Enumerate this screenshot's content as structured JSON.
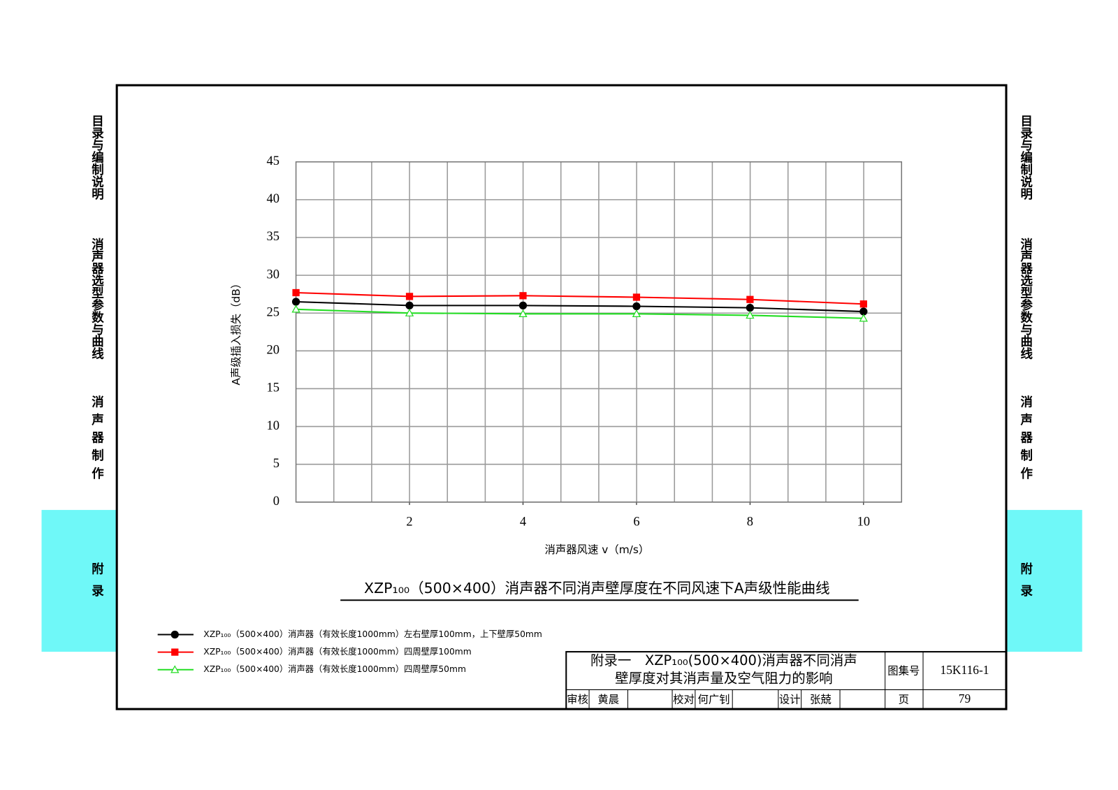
{
  "chart_data": {
    "type": "line",
    "title": "XZP₁₀₀（500×400）消声器不同消声壁厚度在不同风速下A声级性能曲线",
    "x_label": "消声器风速 v（m/s）",
    "y_label": "A声级插入损失（dB）",
    "x": [
      0,
      2,
      4,
      6,
      8,
      10
    ],
    "xlim": [
      0,
      10.67
    ],
    "xticks": [
      2,
      4,
      6,
      8,
      10
    ],
    "ylim": [
      0,
      45
    ],
    "yticks": [
      0,
      5,
      10,
      15,
      20,
      25,
      30,
      35,
      40,
      45
    ],
    "grid": true,
    "series": [
      {
        "name": "XZP₁₀₀（500×400）消声器（有效长度1000mm）左右壁厚100mm，上下壁厚50mm",
        "color": "#000000",
        "marker": "circle",
        "values": [
          26.5,
          26.0,
          26.0,
          25.9,
          25.7,
          25.2
        ]
      },
      {
        "name": "XZP₁₀₀（500×400）消声器（有效长度1000mm）四周壁厚100mm",
        "color": "#ff0000",
        "marker": "square",
        "values": [
          27.7,
          27.2,
          27.3,
          27.1,
          26.8,
          26.2
        ]
      },
      {
        "name": "XZP₁₀₀（500×400）消声器（有效长度1000mm）四周壁厚50mm",
        "color": "#22dd22",
        "marker": "triangle",
        "values": [
          25.5,
          25.0,
          24.9,
          24.9,
          24.7,
          24.3
        ]
      }
    ]
  },
  "side_tabs": [
    "目录与编制说明",
    "消声器选型参数与曲线",
    "消声器制作",
    "附录"
  ],
  "title_block": {
    "title_line1": "附录一　XZP₁₀₀(500×400)消声器不同消声",
    "title_line2": "壁厚度对其消声量及空气阻力的影响",
    "atlas_label": "图集号",
    "atlas_no": "15K116-1",
    "review_label": "审核",
    "reviewer": "黄晨",
    "check_label": "校对",
    "checker": "何广钊",
    "design_label": "设计",
    "designer": "张兢",
    "page_label": "页",
    "page_no": "79"
  }
}
